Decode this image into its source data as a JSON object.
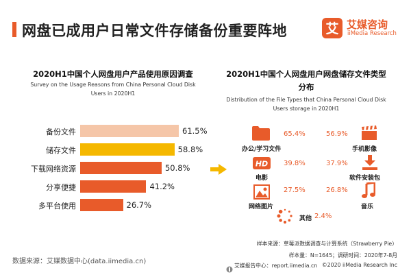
{
  "header": {
    "title": "网盘已成用户日常文件存储备份重要阵地",
    "accent_color": "#e85b2a",
    "logo_cn": "艾媒咨询",
    "logo_en": "iiMedia Research",
    "logo_char": "艾"
  },
  "chart_data": [
    {
      "type": "bar",
      "orientation": "horizontal",
      "title": "2020H1中国个人网盘用户产品使用原因调查",
      "subtitle_line1": "Survey on the Usage Reasons from China Personal Cloud Disk",
      "subtitle_line2": "Users in 2020H1",
      "categories": [
        "备份文件",
        "储存文件",
        "下载网络资源",
        "分享便捷",
        "多平台使用"
      ],
      "values": [
        61.5,
        58.8,
        50.8,
        41.2,
        26.7
      ],
      "value_labels": [
        "61.5%",
        "58.8%",
        "50.8%",
        "41.2%",
        "26.7%"
      ],
      "colors": [
        "#f5c6a8",
        "#f5b800",
        "#e85b2a",
        "#e85b2a",
        "#e85b2a"
      ],
      "xlim": [
        0,
        65
      ],
      "grid": false,
      "unit": "%"
    },
    {
      "type": "table",
      "title_line1": "2020H1中国个人网盘用户网盘储存文件类型",
      "title_line2": "分布",
      "subtitle_line1": "Distribution of the File Types that China Personal Cloud Disk",
      "subtitle_line2": "Users storage in 2020H1",
      "items": [
        {
          "name": "办公/学习文件",
          "value": 65.4,
          "label": "65.4%",
          "icon": "folder-icon"
        },
        {
          "name": "手机影像",
          "value": 56.9,
          "label": "56.9%",
          "icon": "clapperboard-icon"
        },
        {
          "name": "电影",
          "value": 39.8,
          "label": "39.8%",
          "icon": "hd-icon"
        },
        {
          "name": "软件安装包",
          "value": 37.9,
          "label": "37.9%",
          "icon": "download-icon"
        },
        {
          "name": "网络图片",
          "value": 27.5,
          "label": "27.5%",
          "icon": "image-icon"
        },
        {
          "name": "音乐",
          "value": 26.8,
          "label": "26.8%",
          "icon": "music-note-icon"
        },
        {
          "name": "其他",
          "value": 2.4,
          "label": "2.4%",
          "icon": "loading-dots-icon"
        }
      ]
    }
  ],
  "footer": {
    "data_source": "数据来源：艾媒数据中心(data.iimedia.cn)",
    "sample_source": "样本来源：草莓派数据调查与计算系统（Strawberry Pie）",
    "sample_info": "样本量：N=1645；调研时间：2020年7-8月",
    "report_site": "艾媒报告中心：report.iimedia.cn",
    "copyright": "©2020  iiMedia Research Inc"
  }
}
